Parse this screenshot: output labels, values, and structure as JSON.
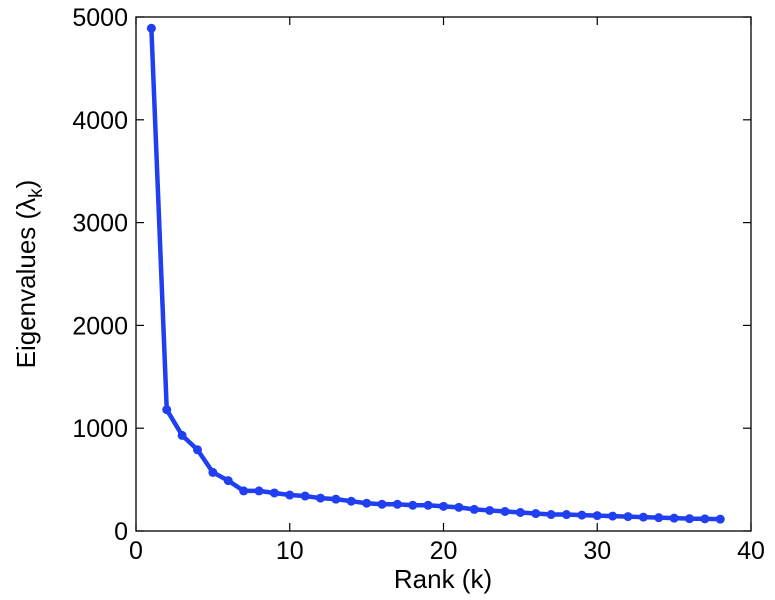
{
  "chart_data": {
    "type": "line",
    "title": "",
    "xlabel": "Rank (k)",
    "ylabel": "Eigenvalues (λ",
    "ylabel_subscript": "k",
    "ylabel_close": ")",
    "xlim": [
      0,
      40
    ],
    "ylim": [
      0,
      5000
    ],
    "xticks": [
      0,
      10,
      20,
      30,
      40
    ],
    "yticks": [
      0,
      1000,
      2000,
      3000,
      4000,
      5000
    ],
    "grid": false,
    "legend": "none",
    "series": [
      {
        "color": "#1f3ff0",
        "marker": "circle",
        "x": [
          1,
          2,
          3,
          4,
          5,
          6,
          7,
          8,
          9,
          10,
          11,
          12,
          13,
          14,
          15,
          16,
          17,
          18,
          19,
          20,
          21,
          22,
          23,
          24,
          25,
          26,
          27,
          28,
          29,
          30,
          31,
          32,
          33,
          34,
          35,
          36,
          37,
          38
        ],
        "values": [
          4890,
          1180,
          930,
          790,
          570,
          490,
          390,
          390,
          370,
          350,
          340,
          320,
          310,
          290,
          270,
          260,
          260,
          250,
          250,
          240,
          230,
          210,
          200,
          190,
          180,
          170,
          160,
          160,
          155,
          150,
          145,
          140,
          135,
          130,
          125,
          120,
          118,
          115
        ]
      }
    ]
  }
}
